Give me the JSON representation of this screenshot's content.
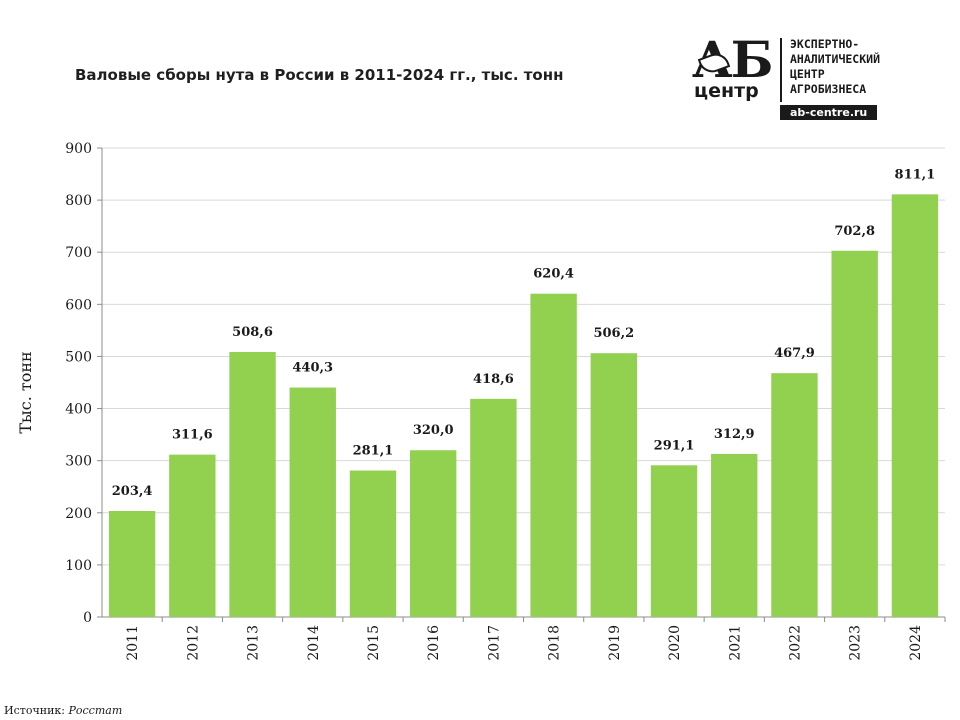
{
  "title": "Валовые сборы нута в России в 2011-2024 гг., тыс. тонн",
  "logo": {
    "mark": "АБ",
    "sub": "центр",
    "lines": [
      "ЭКСПЕРТНО-",
      "АНАЛИТИЧЕСКИЙ",
      "ЦЕНТР",
      "АГРОБИЗНЕСА"
    ],
    "site": "ab-centre.ru"
  },
  "source": {
    "label": "Источник:",
    "value": "Росстат"
  },
  "chart_data": {
    "type": "bar",
    "categories": [
      "2011",
      "2012",
      "2013",
      "2014",
      "2015",
      "2016",
      "2017",
      "2018",
      "2019",
      "2020",
      "2021",
      "2022",
      "2023",
      "2024"
    ],
    "values": [
      203.4,
      311.6,
      508.6,
      440.3,
      281.1,
      320.0,
      418.6,
      620.4,
      506.2,
      291.1,
      312.9,
      467.9,
      702.8,
      811.1
    ],
    "data_labels": [
      "203,4",
      "311,6",
      "508,6",
      "440,3",
      "281,1",
      "320,0",
      "418,6",
      "620,4",
      "506,2",
      "291,1",
      "312,9",
      "467,9",
      "702,8",
      "811,1"
    ],
    "ylabel": "Тыс. тонн",
    "xlabel": "",
    "ylim": [
      0,
      900
    ],
    "yticks": [
      0,
      100,
      200,
      300,
      400,
      500,
      600,
      700,
      800,
      900
    ],
    "grid": true,
    "bar_color": "#92d050"
  }
}
